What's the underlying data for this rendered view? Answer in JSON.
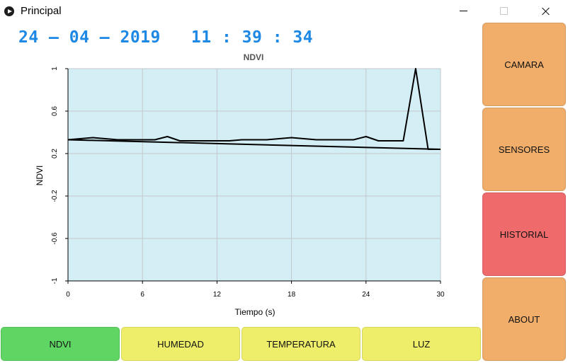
{
  "window": {
    "title": "Principal",
    "controls": [
      "minimize",
      "maximize",
      "close"
    ]
  },
  "datetime": {
    "date": "24 – 04 – 2019",
    "time": "11 : 39 : 34",
    "color": "#1e88e5"
  },
  "side_buttons": [
    {
      "label": "CAMARA",
      "color": "#f0ae6a"
    },
    {
      "label": "SENSORES",
      "color": "#f0ae6a"
    },
    {
      "label": "HISTORIAL",
      "color": "#ef6b6b"
    },
    {
      "label": "ABOUT",
      "color": "#f0ae6a"
    }
  ],
  "tabs": [
    {
      "label": "NDVI",
      "color": "#5fd664"
    },
    {
      "label": "HUMEDAD",
      "color": "#eeee6a"
    },
    {
      "label": "TEMPERATURA",
      "color": "#eeee6a"
    },
    {
      "label": "LUZ",
      "color": "#eeee6a"
    }
  ],
  "chart_data": {
    "type": "line",
    "title": "NDVI",
    "xlabel": "Tiempo (s)",
    "ylabel": "NDVI",
    "xlim": [
      0,
      30
    ],
    "ylim": [
      -1,
      1
    ],
    "xticks": [
      0,
      6,
      12,
      18,
      24,
      30
    ],
    "yticks": [
      1,
      0.6,
      0.2,
      -0.2,
      -0.6,
      -1
    ],
    "grid": true,
    "plot_background": "#d4eef5",
    "series": [
      {
        "color": "#000000",
        "x": [
          0,
          1,
          2,
          3,
          4,
          5,
          6,
          7,
          8,
          9,
          10,
          11,
          12,
          13,
          14,
          15,
          16,
          17,
          18,
          19,
          20,
          21,
          22,
          23,
          24,
          25,
          26,
          27,
          28,
          29,
          30
        ],
        "y": [
          0.33,
          0.34,
          0.35,
          0.34,
          0.33,
          0.33,
          0.33,
          0.33,
          0.36,
          0.32,
          0.32,
          0.32,
          0.32,
          0.32,
          0.33,
          0.33,
          0.33,
          0.34,
          0.35,
          0.34,
          0.33,
          0.33,
          0.33,
          0.33,
          0.36,
          0.32,
          0.32,
          0.32,
          1.0,
          0.24,
          0.24
        ]
      },
      {
        "color": "#000000",
        "x": [
          0,
          30
        ],
        "y": [
          0.33,
          0.24
        ]
      }
    ]
  }
}
